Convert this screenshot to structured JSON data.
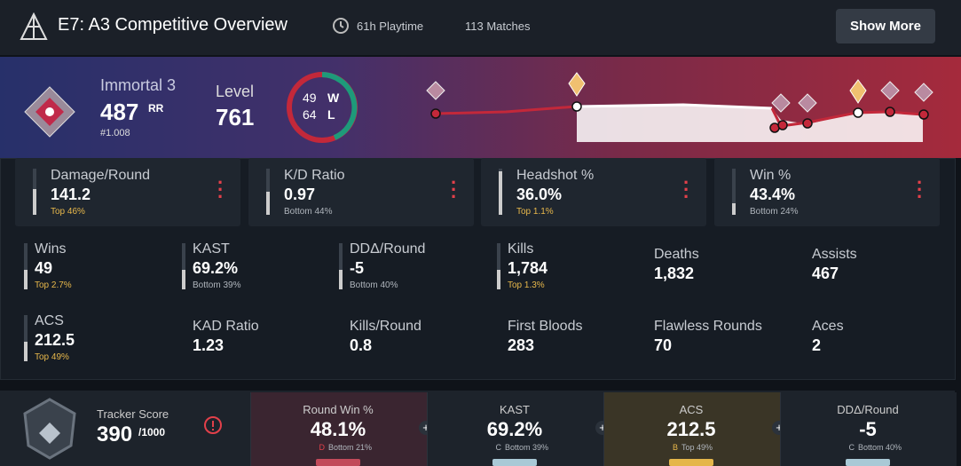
{
  "header": {
    "title": "E7: A3 Competitive Overview",
    "playtime": "61h Playtime",
    "matches": "113 Matches",
    "button": "Show More"
  },
  "rank": {
    "name": "Immortal 3",
    "rr": "487",
    "rr_unit": "RR",
    "position": "#1.008",
    "level_label": "Level",
    "level": "761",
    "wins": "49",
    "wins_label": "W",
    "losses": "64",
    "losses_label": "L"
  },
  "cards": [
    {
      "label": "Damage/Round",
      "value": "141.2",
      "rank": "Top 46%"
    },
    {
      "label": "K/D Ratio",
      "value": "0.97",
      "rank": "Bottom 44%"
    },
    {
      "label": "Headshot %",
      "value": "36.0%",
      "rank": "Top 1.1%"
    },
    {
      "label": "Win %",
      "value": "43.4%",
      "rank": "Bottom 24%"
    }
  ],
  "stats": [
    {
      "label": "Wins",
      "value": "49",
      "rank": "Top 2.7%"
    },
    {
      "label": "KAST",
      "value": "69.2%",
      "rank": "Bottom 39%"
    },
    {
      "label": "DDΔ/Round",
      "value": "-5",
      "rank": "Bottom 40%"
    },
    {
      "label": "Kills",
      "value": "1,784",
      "rank": "Top 1.3%"
    },
    {
      "label": "Deaths",
      "value": "1,832"
    },
    {
      "label": "Assists",
      "value": "467"
    },
    {
      "label": "ACS",
      "value": "212.5",
      "rank": "Top 49%"
    },
    {
      "label": "KAD Ratio",
      "value": "1.23"
    },
    {
      "label": "Kills/Round",
      "value": "0.8"
    },
    {
      "label": "First Bloods",
      "value": "283"
    },
    {
      "label": "Flawless Rounds",
      "value": "70"
    },
    {
      "label": "Aces",
      "value": "2"
    }
  ],
  "tracker": {
    "label": "Tracker Score",
    "score": "390",
    "max": "/1000"
  },
  "summary": [
    {
      "label": "Round Win %",
      "value": "48.1%",
      "grade": "D",
      "rank": "Bottom 21%"
    },
    {
      "label": "KAST",
      "value": "69.2%",
      "grade": "C",
      "rank": "Bottom 39%"
    },
    {
      "label": "ACS",
      "value": "212.5",
      "grade": "B",
      "rank": "Top 49%"
    },
    {
      "label": "DDΔ/Round",
      "value": "-5",
      "grade": "C",
      "rank": "Bottom 40%"
    }
  ]
}
